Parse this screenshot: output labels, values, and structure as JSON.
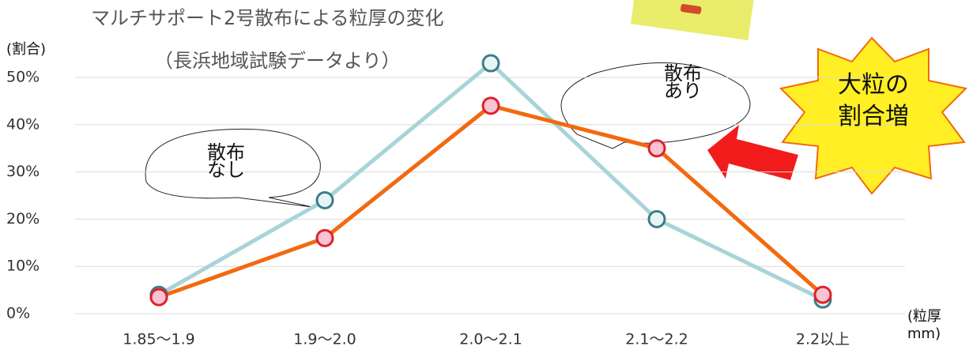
{
  "chart_data": {
    "type": "line",
    "title": "マルチサポート2号散布による粒厚の変化",
    "subtitle": "（長浜地域試験データより）",
    "y_label": "(割合)",
    "x_label": "(粒厚mm)",
    "annotation": "大粒の割合増",
    "categories": [
      "1.85〜1.9",
      "1.9〜2.0",
      "2.0〜2.1",
      "2.1〜2.2",
      "2.2以上"
    ],
    "series": [
      {
        "name": "散布なし",
        "color": "#a8d4d8",
        "values": [
          4,
          24,
          53,
          20,
          3
        ]
      },
      {
        "name": "散布あり",
        "color": "#f26a10",
        "values": [
          3.5,
          16,
          44,
          35,
          4
        ]
      }
    ],
    "ylim": [
      0,
      50
    ],
    "yticks": [
      {
        "value": 0,
        "label": "0%"
      },
      {
        "value": 10,
        "label": "10%"
      },
      {
        "value": 20,
        "label": "20%"
      },
      {
        "value": 30,
        "label": "30%"
      },
      {
        "value": 40,
        "label": "40%"
      },
      {
        "value": 50,
        "label": "50%"
      }
    ],
    "grid": true
  }
}
